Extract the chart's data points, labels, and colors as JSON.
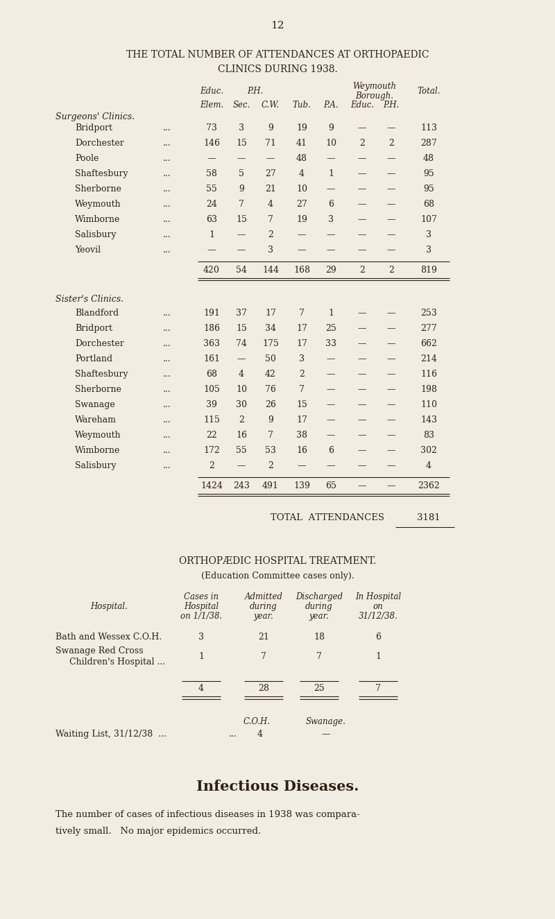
{
  "bg_color": "#f2ede3",
  "text_color": "#2d2010",
  "page_number": "12",
  "title_line1": "THE TOTAL NUMBER OF ATTENDANCES AT ORTHOPAEDIC",
  "title_line2": "CLINICS DURING 1938.",
  "surgeons_label": "Surgeons' Clinics.",
  "surgeons_rows": [
    [
      "Bridport",
      "...",
      "73",
      "3",
      "9",
      "19",
      "9",
      "—",
      "—",
      "113"
    ],
    [
      "Dorchester",
      "...",
      "146",
      "15",
      "71",
      "41",
      "10",
      "2",
      "2",
      "287"
    ],
    [
      "Poole",
      "...",
      "—",
      "—",
      "—",
      "48",
      "—",
      "—",
      "—",
      "48"
    ],
    [
      "Shaftesbury",
      "...",
      "58",
      "5",
      "27",
      "4",
      "1",
      "—",
      "—",
      "95"
    ],
    [
      "Sherborne",
      "...",
      "55",
      "9",
      "21",
      "10",
      "—",
      "—",
      "—",
      "95"
    ],
    [
      "Weymouth",
      "...",
      "24",
      "7",
      "4",
      "27",
      "6",
      "—",
      "—",
      "68"
    ],
    [
      "Wimborne",
      "...",
      "63",
      "15",
      "7",
      "19",
      "3",
      "—",
      "—",
      "107"
    ],
    [
      "Salisbury",
      "...",
      "1",
      "—",
      "2",
      "—",
      "—",
      "—",
      "—",
      "3"
    ],
    [
      "Yeovil",
      "...",
      "—",
      "—",
      "3",
      "—",
      "—",
      "—",
      "—",
      "3"
    ]
  ],
  "surgeons_total": [
    "420",
    "54",
    "144",
    "168",
    "29",
    "2",
    "2",
    "819"
  ],
  "sisters_label": "Sister's Clinics.",
  "sisters_rows": [
    [
      "Blandford",
      "...",
      "191",
      "37",
      "17",
      "7",
      "1",
      "—",
      "—",
      "253"
    ],
    [
      "Bridport",
      "...",
      "186",
      "15",
      "34",
      "17",
      "25",
      "—",
      "—",
      "277"
    ],
    [
      "Dorchester",
      "...",
      "363",
      "74",
      "175",
      "17",
      "33",
      "—",
      "—",
      "662"
    ],
    [
      "Portland",
      "...",
      "161",
      "—",
      "50",
      "3",
      "—",
      "—",
      "—",
      "214"
    ],
    [
      "Shaftesbury",
      "...",
      "68",
      "4",
      "42",
      "2",
      "—",
      "—",
      "—",
      "116"
    ],
    [
      "Sherborne",
      "...",
      "105",
      "10",
      "76",
      "7",
      "—",
      "—",
      "—",
      "198"
    ],
    [
      "Swanage",
      "...",
      "39",
      "30",
      "26",
      "15",
      "—",
      "—",
      "—",
      "110"
    ],
    [
      "Wareham",
      "...",
      "115",
      "2",
      "9",
      "17",
      "—",
      "—",
      "—",
      "143"
    ],
    [
      "Weymouth",
      "...",
      "22",
      "16",
      "7",
      "38",
      "—",
      "—",
      "—",
      "83"
    ],
    [
      "Wimborne",
      "...",
      "172",
      "55",
      "53",
      "16",
      "6",
      "—",
      "—",
      "302"
    ],
    [
      "Salisbury",
      "...",
      "2",
      "—",
      "2",
      "—",
      "—",
      "—",
      "—",
      "4"
    ]
  ],
  "sisters_total": [
    "1424",
    "243",
    "491",
    "139",
    "65",
    "—",
    "—",
    "2362"
  ],
  "total_attendances_label": "Total Attendances",
  "total_attendances_value": "3181",
  "ortho_title": "ORTHOPÆDIC HOSPITAL TREATMENT.",
  "ortho_subtitle": "(Education Committee cases only).",
  "hosp_rows": [
    [
      "Bath and Wessex C.O.H.",
      "3",
      "21",
      "18",
      "6"
    ],
    [
      "Swanage Red Cross",
      "Children's Hospital ...",
      "1",
      "7",
      "7",
      "1"
    ]
  ],
  "hosp_totals": [
    "4",
    "28",
    "25",
    "7"
  ],
  "waiting_coh_label": "C.O.H.",
  "waiting_swanage_label": "Swanage.",
  "waiting_coh_value": "4",
  "waiting_swanage_value": "—",
  "infectious_title": "Infectious Diseases.",
  "infectious_text_1": "The number of cases of infectious diseases in 1938 was compara-",
  "infectious_text_2": "tively small.   No major epidemics occurred."
}
